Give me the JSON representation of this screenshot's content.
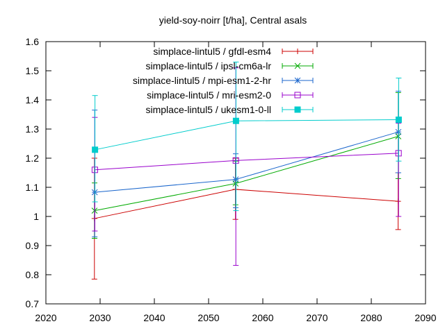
{
  "chart_data": {
    "type": "line",
    "title": "yield-soy-noirr [t/ha], Central asals",
    "xlabel": "",
    "ylabel": "",
    "xlim": [
      2020,
      2090
    ],
    "ylim": [
      0.7,
      1.6
    ],
    "xticks": [
      2020,
      2030,
      2040,
      2050,
      2060,
      2070,
      2080,
      2090
    ],
    "yticks": [
      0.7,
      0.8,
      0.9,
      1,
      1.1,
      1.2,
      1.3,
      1.4,
      1.5,
      1.6
    ],
    "xtick_labels": [
      "2020",
      "2030",
      "2040",
      "2050",
      "2060",
      "2070",
      "2080",
      "2090"
    ],
    "ytick_labels": [
      "0.7",
      "0.8",
      "0.9",
      "1",
      "1.1",
      "1.2",
      "1.3",
      "1.4",
      "1.5",
      "1.6"
    ],
    "grid": false,
    "legend_position": "top-right",
    "x": [
      2029,
      2055,
      2085
    ],
    "series": [
      {
        "name": "simplace-lintul5 / gfdl-esm4",
        "color": "#cc0000",
        "marker": "plus",
        "values": [
          0.993,
          1.093,
          1.052
        ],
        "err_low": [
          0.785,
          0.99,
          0.955
        ],
        "err_high": [
          1.2,
          1.2,
          1.15
        ]
      },
      {
        "name": "simplace-lintul5 / ipsl-cm6a-lr",
        "color": "#00aa00",
        "marker": "cross",
        "values": [
          1.02,
          1.113,
          1.275
        ],
        "err_low": [
          0.925,
          1.04,
          1.13
        ],
        "err_high": [
          1.115,
          1.19,
          1.425
        ]
      },
      {
        "name": "simplace-lintul5 / mpi-esm1-2-hr",
        "color": "#1a66cc",
        "marker": "star",
        "values": [
          1.083,
          1.127,
          1.29
        ],
        "err_low": [
          0.93,
          1.03,
          1.15
        ],
        "err_high": [
          1.365,
          1.215,
          1.43
        ]
      },
      {
        "name": "simplace-lintul5 / mri-esm2-0",
        "color": "#9900cc",
        "marker": "square",
        "values": [
          1.16,
          1.192,
          1.217
        ],
        "err_low": [
          0.95,
          0.832,
          1.0
        ],
        "err_high": [
          1.34,
          1.51,
          1.32
        ]
      },
      {
        "name": "simplace-lintul5 / ukesm1-0-ll",
        "color": "#00cccc",
        "marker": "filled-square",
        "values": [
          1.229,
          1.328,
          1.332
        ],
        "err_low": [
          1.05,
          1.02,
          1.19
        ],
        "err_high": [
          1.415,
          1.53,
          1.475
        ]
      }
    ]
  }
}
